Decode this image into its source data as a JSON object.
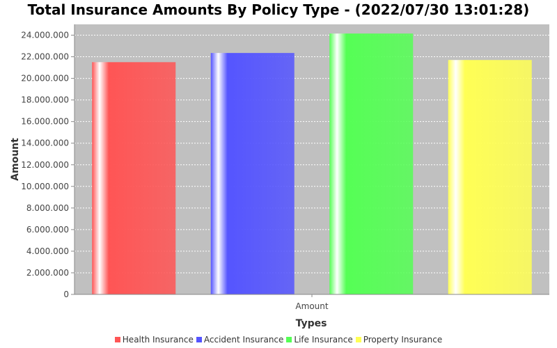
{
  "chart_data": {
    "type": "bar",
    "title": "Total Insurance Amounts By Policy Type - (2022/07/30 13:01:28)",
    "xlabel": "Types",
    "ylabel": "Amount",
    "categories": [
      "Amount"
    ],
    "series": [
      {
        "name": "Health Insurance",
        "values": [
          21500000
        ],
        "color": "#ff5555"
      },
      {
        "name": "Accident Insurance",
        "values": [
          22350000
        ],
        "color": "#5555ff"
      },
      {
        "name": "Life Insurance",
        "values": [
          24150000
        ],
        "color": "#55ff55"
      },
      {
        "name": "Property Insurance",
        "values": [
          21700000
        ],
        "color": "#ffff55"
      }
    ],
    "ylim": [
      0,
      25000000
    ],
    "yticks": [
      0,
      2000000,
      4000000,
      6000000,
      8000000,
      10000000,
      12000000,
      14000000,
      16000000,
      18000000,
      20000000,
      22000000,
      24000000
    ],
    "ytick_labels": [
      "0",
      "2.000.000",
      "4.000.000",
      "6.000.000",
      "8.000.000",
      "10.000.000",
      "12.000.000",
      "14.000.000",
      "16.000.000",
      "18.000.000",
      "20.000.000",
      "22.000.000",
      "24.000.000"
    ],
    "grid": true,
    "legend_position": "bottom",
    "plot_background": "#c0c0c0"
  }
}
